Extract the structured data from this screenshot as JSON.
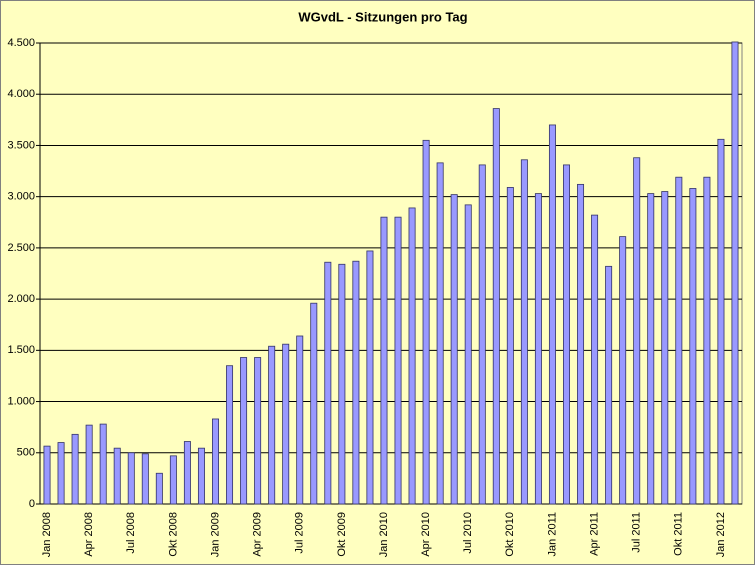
{
  "chart_data": {
    "type": "bar",
    "title": "WGvdL - Sitzungen pro Tag",
    "categories": [
      "Jan 2008",
      null,
      null,
      "Apr 2008",
      null,
      null,
      "Jul 2008",
      null,
      null,
      "Okt 2008",
      null,
      null,
      "Jan 2009",
      null,
      null,
      "Apr 2009",
      null,
      null,
      "Jul 2009",
      null,
      null,
      "Okt 2009",
      null,
      null,
      "Jan 2010",
      null,
      null,
      "Apr 2010",
      null,
      null,
      "Jul 2010",
      null,
      null,
      "Okt 2010",
      null,
      null,
      "Jan 2011",
      null,
      null,
      "Apr 2011",
      null,
      null,
      "Jul 2011",
      null,
      null,
      "Okt 2011",
      null,
      null,
      "Jan 2012",
      null
    ],
    "values": [
      565,
      600,
      680,
      770,
      780,
      545,
      500,
      490,
      300,
      470,
      610,
      545,
      830,
      1350,
      1430,
      1430,
      1540,
      1560,
      1640,
      1960,
      2360,
      2340,
      2370,
      2470,
      2800,
      2800,
      2890,
      3550,
      3330,
      3020,
      2920,
      3310,
      3860,
      3090,
      3360,
      3030,
      3700,
      3310,
      3120,
      2820,
      2320,
      2610,
      3380,
      3030,
      3050,
      3190,
      3080,
      3190,
      3560,
      4510
    ],
    "color": "#9999ff",
    "ylim": [
      0,
      4500
    ],
    "yticks": [
      0,
      500,
      {
        "value": 1000,
        "label": "1.000"
      },
      {
        "value": 1500,
        "label": "1.500"
      },
      {
        "value": 2000,
        "label": "2.000"
      },
      {
        "value": 2500,
        "label": "2.500"
      },
      {
        "value": 3000,
        "label": "3.000"
      },
      {
        "value": 3500,
        "label": "3.500"
      },
      {
        "value": 4000,
        "label": "4.000"
      },
      {
        "value": 4500,
        "label": "4.500"
      }
    ],
    "grid": true
  }
}
